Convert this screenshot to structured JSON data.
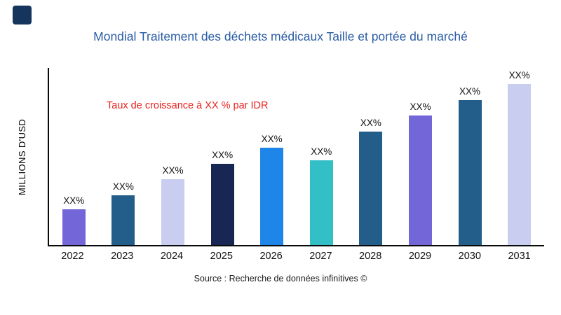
{
  "logo": {
    "color": "#16355c"
  },
  "chart_data": {
    "type": "bar",
    "title": "Mondial Traitement des déchets médicaux Taille et portée du marché",
    "title_color": "#2a5ca5",
    "ylabel": "MILLIONS D'USD",
    "annotation": "Taux de croissance à XX % par IDR",
    "annotation_color": "#e8231f",
    "source": "Source : Recherche de données infinitives ©",
    "categories": [
      "2022",
      "2023",
      "2024",
      "2025",
      "2026",
      "2027",
      "2028",
      "2029",
      "2030",
      "2031"
    ],
    "value_labels": [
      "XX%",
      "XX%",
      "XX%",
      "XX%",
      "XX%",
      "XX%",
      "XX%",
      "XX%",
      "XX%",
      "XX%"
    ],
    "relative_heights_pct": [
      20,
      28,
      37,
      46,
      55,
      48,
      64,
      73,
      82,
      91
    ],
    "bar_colors": [
      "#7366d8",
      "#235e8b",
      "#c9cdef",
      "#172652",
      "#1e86e8",
      "#33bfc6",
      "#235e8b",
      "#7366d8",
      "#235e8b",
      "#c9cdef"
    ],
    "ylim": [
      0,
      100
    ],
    "grid": false,
    "legend": false
  }
}
